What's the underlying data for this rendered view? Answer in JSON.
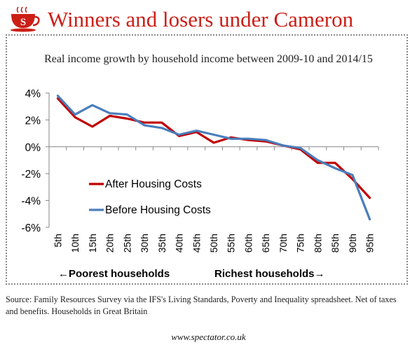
{
  "header": {
    "headline": "Winners and losers under Cameron",
    "logo_letter": "S"
  },
  "footer": {
    "source": "Source: Family Resources Survey via the IFS's Living Standards, Poverty and Inequality spreadsheet. Net of taxes and benefits. Households in Great Britain",
    "website": "www.spectator.co.uk"
  },
  "colors": {
    "brand_red": "#cc1f16",
    "after_housing": "#c00000",
    "before_housing": "#4a7ebb"
  },
  "chart_data": {
    "type": "line",
    "title": "Real income growth by household income between 2009-10 and 2014/15",
    "categories": [
      "5th",
      "10th",
      "15th",
      "20th",
      "25th",
      "30th",
      "35th",
      "40th",
      "45th",
      "50th",
      "55th",
      "60th",
      "65th",
      "70th",
      "75th",
      "80th",
      "85th",
      "90th",
      "95th"
    ],
    "series": [
      {
        "name": "After Housing Costs",
        "color": "#c00000",
        "values": [
          3.6,
          2.2,
          1.5,
          2.3,
          2.1,
          1.8,
          1.8,
          0.8,
          1.1,
          0.3,
          0.7,
          0.5,
          0.4,
          0.1,
          -0.2,
          -1.2,
          -1.2,
          -2.4,
          -3.8
        ]
      },
      {
        "name": "Before Housing Costs",
        "color": "#4a7ebb",
        "values": [
          3.8,
          2.4,
          3.1,
          2.5,
          2.4,
          1.6,
          1.4,
          0.9,
          1.2,
          0.9,
          0.6,
          0.6,
          0.5,
          0.1,
          -0.1,
          -1.0,
          -1.6,
          -2.1,
          -5.4
        ]
      }
    ],
    "ylim": [
      -6,
      4
    ],
    "yticks": [
      -6,
      -4,
      -2,
      0,
      2,
      4
    ],
    "ytick_labels": [
      "-6%",
      "-4%",
      "-2%",
      "0%",
      "2%",
      "4%"
    ],
    "x_annotation_left": "←Poorest households",
    "x_annotation_right": "Richest households→",
    "legend_position": "bottom-left",
    "grid": false
  }
}
